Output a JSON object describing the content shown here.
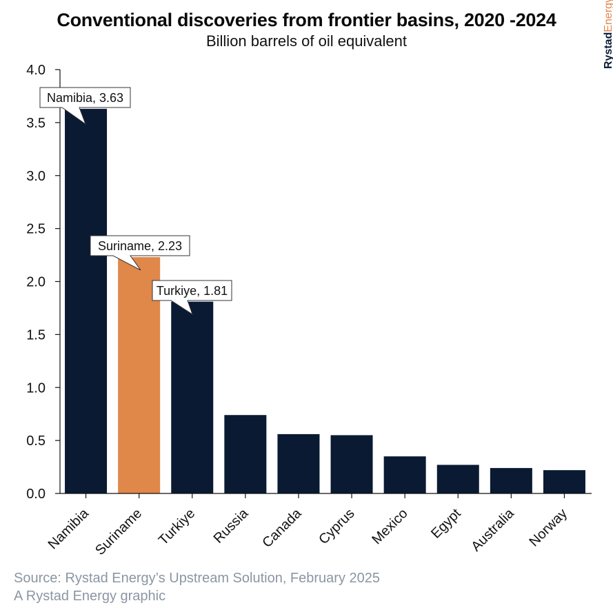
{
  "header": {
    "title": "Conventional discoveries from frontier basins, 2020 -2024",
    "subtitle": "Billion barrels of oil equivalent"
  },
  "brand": {
    "part1": "Rystad",
    "part2": "Energy"
  },
  "footer": {
    "source": "Source: Rystad Energy’s Upstream Solution, February 2025",
    "credit": "A Rystad Energy graphic"
  },
  "colors": {
    "default_bar": "#0a1a33",
    "highlight_bar": "#e0874a",
    "axis": "#111111"
  },
  "chart_data": {
    "type": "bar",
    "title": "Conventional discoveries from frontier basins, 2020 -2024",
    "subtitle": "Billion barrels of oil equivalent",
    "categories": [
      "Namibia",
      "Suriname",
      "Turkiye",
      "Russia",
      "Canada",
      "Cyprus",
      "Mexico",
      "Egypt",
      "Australia",
      "Norway"
    ],
    "values": [
      3.63,
      2.23,
      1.81,
      0.74,
      0.56,
      0.55,
      0.35,
      0.27,
      0.24,
      0.22
    ],
    "highlight": [
      "Suriname"
    ],
    "ylim": [
      0,
      4.0
    ],
    "yticks": [
      0.0,
      0.5,
      1.0,
      1.5,
      2.0,
      2.5,
      3.0,
      3.5,
      4.0
    ],
    "ytick_labels": [
      "0.0",
      "0.5",
      "1.0",
      "1.5",
      "2.0",
      "2.5",
      "3.0",
      "3.5",
      "4.0"
    ],
    "grid": false,
    "annotations": [
      {
        "category": "Namibia",
        "text": "Namibia, 3.63"
      },
      {
        "category": "Suriname",
        "text": "Suriname, 2.23"
      },
      {
        "category": "Turkiye",
        "text": "Turkiye, 1.81"
      }
    ]
  }
}
